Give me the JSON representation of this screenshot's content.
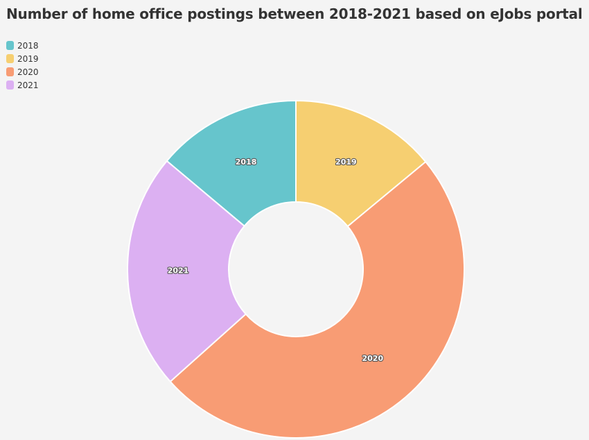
{
  "title": "Number of home office postings between 2018-2021 based on eJobs portal",
  "legend": [
    {
      "label": "2018",
      "color": "#66c5cc"
    },
    {
      "label": "2019",
      "color": "#f6cf71"
    },
    {
      "label": "2020",
      "color": "#f89c74"
    },
    {
      "label": "2021",
      "color": "#dcb0f2"
    }
  ],
  "chart_data": {
    "type": "pie",
    "variant": "donut",
    "title": "Number of home office postings between 2018-2021 based on eJobs portal",
    "categories": [
      "2018",
      "2019",
      "2020",
      "2021"
    ],
    "values": [
      13.9,
      14.0,
      49.4,
      22.7
    ],
    "unit": "percent of total (estimated, no values printed)",
    "colors": [
      "#66c5cc",
      "#f6cf71",
      "#f89c74",
      "#dcb0f2"
    ],
    "slice_labels": [
      "2018",
      "2019",
      "2020",
      "2021"
    ],
    "legend_position": "top-left"
  }
}
